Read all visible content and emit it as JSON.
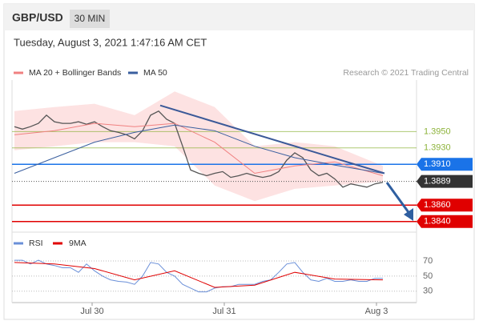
{
  "header": {
    "symbol": "GBP/USD",
    "interval": "30 MIN",
    "timestamp": "Tuesday, August 3, 2021 1:47:16 AM CET",
    "credit": "Research © 2021 Trading Central"
  },
  "chart_data": [
    {
      "type": "line",
      "xlim": [
        0,
        50
      ],
      "ylim": [
        1.3827,
        1.4013
      ],
      "xticks": [
        {
          "value": 9.7,
          "label": "Jul 30"
        },
        {
          "value": 26.2,
          "label": "Jul 31"
        },
        {
          "value": 45.2,
          "label": "Aug 3"
        }
      ],
      "price": {
        "color": "#555555",
        "values": [
          1.3956,
          1.3953,
          1.3956,
          1.396,
          1.397,
          1.3962,
          1.396,
          1.396,
          1.3962,
          1.3959,
          1.3962,
          1.3956,
          1.3951,
          1.3949,
          1.3946,
          1.3941,
          1.3951,
          1.397,
          1.3975,
          1.3965,
          1.396,
          1.3932,
          1.3903,
          1.3899,
          1.3896,
          1.3899,
          1.3901,
          1.3894,
          1.3896,
          1.3899,
          1.3896,
          1.3894,
          1.3896,
          1.3901,
          1.3915,
          1.3924,
          1.3918,
          1.3903,
          1.3896,
          1.3899,
          1.3892,
          1.3882,
          1.3886,
          1.3884,
          1.3882,
          1.3886,
          1.3888
        ]
      },
      "band": {
        "color": "#fde2e2",
        "x": [
          0,
          5,
          10,
          15,
          20,
          25,
          30,
          35,
          40,
          46
        ],
        "upper": [
          1.3975,
          1.398,
          1.3984,
          1.397,
          1.3999,
          1.398,
          1.3932,
          1.3937,
          1.3932,
          1.3908
        ],
        "lower": [
          1.3927,
          1.3932,
          1.3937,
          1.3937,
          1.3932,
          1.3884,
          1.3865,
          1.388,
          1.3884,
          1.3889
        ]
      },
      "series": [
        {
          "name": "MA 20 + Bollinger Bands",
          "color": "#f08080",
          "x": [
            0,
            5,
            10,
            15,
            20,
            25,
            30,
            35,
            40,
            46
          ],
          "values": [
            1.3946,
            1.3951,
            1.396,
            1.3956,
            1.396,
            1.3937,
            1.3899,
            1.3908,
            1.3913,
            1.3896
          ]
        },
        {
          "name": "MA 50",
          "color": "#3a5f9f",
          "x": [
            0,
            5,
            10,
            15,
            20,
            25,
            30,
            35,
            40,
            46
          ],
          "values": [
            1.3899,
            1.3918,
            1.3937,
            1.3949,
            1.3958,
            1.3951,
            1.3932,
            1.3918,
            1.3909,
            1.3899
          ]
        }
      ],
      "trendline": {
        "color": "#3b5998",
        "x": [
          18.2,
          46.2
        ],
        "values": [
          1.3982,
          1.3899
        ]
      },
      "levels": [
        {
          "value": 1.395,
          "label": "1.3950",
          "color": "#8db33a",
          "style": "text"
        },
        {
          "value": 1.393,
          "label": "1.3930",
          "color": "#8db33a",
          "style": "text"
        },
        {
          "value": 1.391,
          "label": "1.3910",
          "color": "#1a73e8",
          "style": "box"
        },
        {
          "value": 1.3889,
          "color": "#333333",
          "style": "box",
          "dash": true
        },
        {
          "value": 1.386,
          "label": "1.3860",
          "color": "#e00000",
          "style": "box"
        },
        {
          "value": 1.384,
          "label": "1.3840",
          "color": "#e00000",
          "style": "box"
        }
      ]
    },
    {
      "type": "line",
      "xlim": [
        0,
        50
      ],
      "ylim": [
        18,
        103
      ],
      "yticks": [
        70,
        50,
        30
      ],
      "series": [
        {
          "name": "RSI",
          "color": "#6a8fd8",
          "values": [
            71,
            71,
            66,
            71,
            66,
            64,
            61,
            61,
            55,
            66,
            57,
            50,
            45,
            43,
            42,
            39,
            50,
            68,
            66,
            55,
            50,
            39,
            34,
            29,
            29,
            34,
            36,
            36,
            39,
            39,
            39,
            43,
            45,
            55,
            66,
            68,
            55,
            45,
            43,
            47,
            43,
            43,
            45,
            43,
            43,
            47,
            47
          ]
        },
        {
          "name": "9MA",
          "color": "#e00000",
          "x": [
            0,
            5,
            10,
            15,
            20,
            25,
            30,
            35,
            40,
            46
          ],
          "values": [
            68,
            66,
            60,
            45,
            57,
            35,
            38,
            55,
            46,
            45
          ]
        }
      ]
    }
  ]
}
